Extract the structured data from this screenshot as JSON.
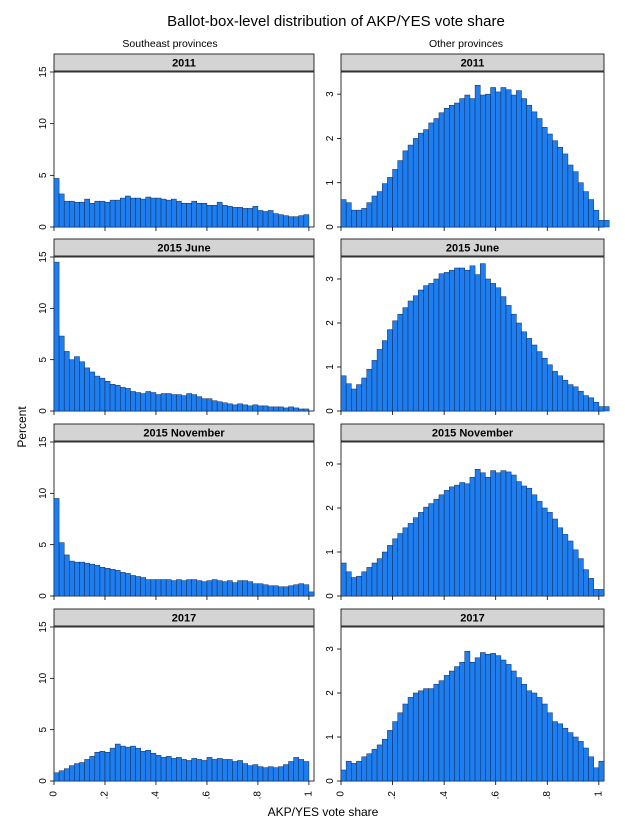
{
  "title": "Ballot-box-level distribution of AKP/YES vote share",
  "column_titles": [
    "Southeast provinces",
    "Other provinces"
  ],
  "ylabel": "Percent",
  "xlabel": "AKP/YES vote share",
  "x_ticks": [
    {
      "value": 0,
      "label": "0"
    },
    {
      "value": 0.2,
      "label": ".2"
    },
    {
      "value": 0.4,
      "label": ".4"
    },
    {
      "value": 0.6,
      "label": ".6"
    },
    {
      "value": 0.8,
      "label": ".8"
    },
    {
      "value": 1,
      "label": "1"
    }
  ],
  "bar_color": "#1e7ef0",
  "chart_data": [
    {
      "type": "bar",
      "column": "Southeast provinces",
      "panel_title": "2011",
      "x_start": 0,
      "bin_width": 0.02,
      "ylim": [
        0,
        15
      ],
      "y_ticks": [
        {
          "value": 0,
          "label": "0"
        },
        {
          "value": 5,
          "label": "5"
        },
        {
          "value": 10,
          "label": "10"
        },
        {
          "value": 15,
          "label": "15"
        }
      ],
      "values": [
        4.7,
        3.2,
        2.5,
        2.5,
        2.4,
        2.4,
        2.7,
        2.3,
        2.5,
        2.5,
        2.4,
        2.6,
        2.6,
        2.8,
        3.0,
        2.8,
        2.8,
        2.7,
        2.9,
        2.8,
        2.8,
        2.7,
        2.6,
        2.7,
        2.5,
        2.3,
        2.3,
        2.5,
        2.3,
        2.3,
        2.1,
        2.1,
        2.4,
        2.1,
        2.0,
        1.9,
        1.9,
        1.8,
        1.8,
        2.0,
        1.6,
        1.5,
        1.6,
        1.3,
        1.2,
        1.1,
        1.0,
        1.0,
        1.1,
        1.2
      ]
    },
    {
      "type": "bar",
      "column": "Other provinces",
      "panel_title": "2011",
      "x_start": 0,
      "bin_width": 0.02,
      "ylim": [
        0,
        3.5
      ],
      "y_ticks": [
        {
          "value": 0,
          "label": "0"
        },
        {
          "value": 1,
          "label": "1"
        },
        {
          "value": 2,
          "label": "2"
        },
        {
          "value": 3,
          "label": "3"
        }
      ],
      "values": [
        0.62,
        0.55,
        0.38,
        0.38,
        0.42,
        0.55,
        0.7,
        0.8,
        0.98,
        1.12,
        1.3,
        1.5,
        1.72,
        1.85,
        2.0,
        2.12,
        2.2,
        2.35,
        2.45,
        2.58,
        2.68,
        2.75,
        2.8,
        2.9,
        2.98,
        2.9,
        3.2,
        2.98,
        3.0,
        3.15,
        3.05,
        3.15,
        3.1,
        2.98,
        3.08,
        2.9,
        2.75,
        2.6,
        2.45,
        2.25,
        2.1,
        1.95,
        1.8,
        1.65,
        1.4,
        1.25,
        1.0,
        0.8,
        0.62,
        0.38,
        0.15,
        0.15
      ]
    },
    {
      "type": "bar",
      "column": "Southeast provinces",
      "panel_title": "2015 June",
      "x_start": 0,
      "bin_width": 0.02,
      "ylim": [
        0,
        15
      ],
      "y_ticks": [
        {
          "value": 0,
          "label": "0"
        },
        {
          "value": 5,
          "label": "5"
        },
        {
          "value": 10,
          "label": "10"
        },
        {
          "value": 15,
          "label": "15"
        }
      ],
      "values": [
        14.5,
        7.3,
        5.8,
        5.0,
        5.3,
        4.8,
        4.2,
        3.8,
        3.4,
        3.2,
        2.9,
        2.6,
        2.5,
        2.3,
        2.2,
        1.9,
        1.8,
        1.7,
        1.9,
        1.8,
        1.6,
        1.7,
        1.7,
        1.6,
        1.6,
        1.5,
        1.7,
        1.6,
        1.4,
        1.2,
        1.2,
        1.0,
        0.9,
        0.8,
        0.7,
        0.6,
        0.7,
        0.6,
        0.5,
        0.6,
        0.5,
        0.5,
        0.4,
        0.4,
        0.4,
        0.3,
        0.4,
        0.3,
        0.2,
        0.2
      ]
    },
    {
      "type": "bar",
      "column": "Other provinces",
      "panel_title": "2015 June",
      "x_start": 0,
      "bin_width": 0.02,
      "ylim": [
        0,
        3.5
      ],
      "y_ticks": [
        {
          "value": 0,
          "label": "0"
        },
        {
          "value": 1,
          "label": "1"
        },
        {
          "value": 2,
          "label": "2"
        },
        {
          "value": 3,
          "label": "3"
        }
      ],
      "values": [
        0.8,
        0.62,
        0.5,
        0.6,
        0.75,
        0.95,
        1.15,
        1.4,
        1.6,
        1.85,
        2.05,
        2.2,
        2.35,
        2.5,
        2.62,
        2.75,
        2.85,
        2.9,
        3.0,
        3.12,
        3.15,
        3.2,
        3.25,
        3.25,
        3.2,
        3.3,
        3.1,
        3.35,
        3.0,
        2.9,
        2.8,
        2.6,
        2.4,
        2.2,
        2.0,
        1.8,
        1.65,
        1.5,
        1.35,
        1.2,
        1.05,
        0.9,
        0.8,
        0.7,
        0.6,
        0.55,
        0.45,
        0.35,
        0.3,
        0.2,
        0.1,
        0.1
      ]
    },
    {
      "type": "bar",
      "column": "Southeast provinces",
      "panel_title": "2015 November",
      "x_start": 0,
      "bin_width": 0.02,
      "ylim": [
        0,
        15
      ],
      "y_ticks": [
        {
          "value": 0,
          "label": "0"
        },
        {
          "value": 5,
          "label": "5"
        },
        {
          "value": 10,
          "label": "10"
        },
        {
          "value": 15,
          "label": "15"
        }
      ],
      "values": [
        9.5,
        5.2,
        4.0,
        3.4,
        3.3,
        3.3,
        3.2,
        3.1,
        3.0,
        2.8,
        2.7,
        2.6,
        2.5,
        2.3,
        2.2,
        2.0,
        1.9,
        1.8,
        1.6,
        1.6,
        1.6,
        1.6,
        1.6,
        1.5,
        1.6,
        1.5,
        1.6,
        1.6,
        1.5,
        1.4,
        1.5,
        1.6,
        1.5,
        1.4,
        1.5,
        1.3,
        1.5,
        1.5,
        1.4,
        1.2,
        1.2,
        1.1,
        1.0,
        1.0,
        0.9,
        0.9,
        1.0,
        1.1,
        1.2,
        1.1,
        0.4
      ]
    },
    {
      "type": "bar",
      "column": "Other provinces",
      "panel_title": "2015 November",
      "x_start": 0,
      "bin_width": 0.02,
      "ylim": [
        0,
        3.5
      ],
      "y_ticks": [
        {
          "value": 0,
          "label": "0"
        },
        {
          "value": 1,
          "label": "1"
        },
        {
          "value": 2,
          "label": "2"
        },
        {
          "value": 3,
          "label": "3"
        }
      ],
      "values": [
        0.75,
        0.55,
        0.42,
        0.45,
        0.55,
        0.65,
        0.75,
        0.85,
        1.0,
        1.15,
        1.3,
        1.42,
        1.55,
        1.65,
        1.78,
        1.9,
        2.02,
        2.1,
        2.2,
        2.3,
        2.4,
        2.48,
        2.52,
        2.58,
        2.55,
        2.7,
        2.88,
        2.8,
        2.7,
        2.85,
        2.8,
        2.85,
        2.82,
        2.75,
        2.6,
        2.5,
        2.45,
        2.3,
        2.15,
        2.0,
        1.9,
        1.75,
        1.55,
        1.4,
        1.25,
        1.05,
        0.85,
        0.6,
        0.4,
        0.15,
        0.15
      ]
    },
    {
      "type": "bar",
      "column": "Southeast provinces",
      "panel_title": "2017",
      "x_start": 0,
      "bin_width": 0.02,
      "ylim": [
        0,
        15
      ],
      "y_ticks": [
        {
          "value": 0,
          "label": "0"
        },
        {
          "value": 5,
          "label": "5"
        },
        {
          "value": 10,
          "label": "10"
        },
        {
          "value": 15,
          "label": "15"
        }
      ],
      "values": [
        0.8,
        1.0,
        1.2,
        1.5,
        1.7,
        1.8,
        2.1,
        2.4,
        2.8,
        2.9,
        2.8,
        3.2,
        3.6,
        3.4,
        3.3,
        3.4,
        3.2,
        2.9,
        3.0,
        2.7,
        2.5,
        2.3,
        2.4,
        2.2,
        2.3,
        2.1,
        2.0,
        2.2,
        2.1,
        2.0,
        2.3,
        2.1,
        2.2,
        2.1,
        2.1,
        1.9,
        2.0,
        1.7,
        1.5,
        1.6,
        1.4,
        1.3,
        1.4,
        1.3,
        1.4,
        1.6,
        1.9,
        2.3,
        2.1,
        1.9
      ]
    },
    {
      "type": "bar",
      "column": "Other provinces",
      "panel_title": "2017",
      "x_start": 0,
      "bin_width": 0.02,
      "ylim": [
        0,
        3.5
      ],
      "y_ticks": [
        {
          "value": 0,
          "label": "0"
        },
        {
          "value": 1,
          "label": "1"
        },
        {
          "value": 2,
          "label": "2"
        },
        {
          "value": 3,
          "label": "3"
        }
      ],
      "values": [
        0.25,
        0.45,
        0.4,
        0.45,
        0.55,
        0.62,
        0.72,
        0.82,
        0.95,
        1.15,
        1.35,
        1.55,
        1.75,
        1.9,
        2.0,
        2.05,
        2.1,
        2.1,
        2.2,
        2.28,
        2.4,
        2.5,
        2.6,
        2.7,
        2.95,
        2.7,
        2.8,
        2.92,
        2.88,
        2.9,
        2.85,
        2.75,
        2.65,
        2.5,
        2.35,
        2.2,
        2.05,
        2.0,
        1.9,
        1.75,
        1.55,
        1.35,
        1.3,
        1.2,
        1.1,
        1.0,
        0.9,
        0.75,
        0.55,
        0.3,
        0.45
      ]
    }
  ]
}
